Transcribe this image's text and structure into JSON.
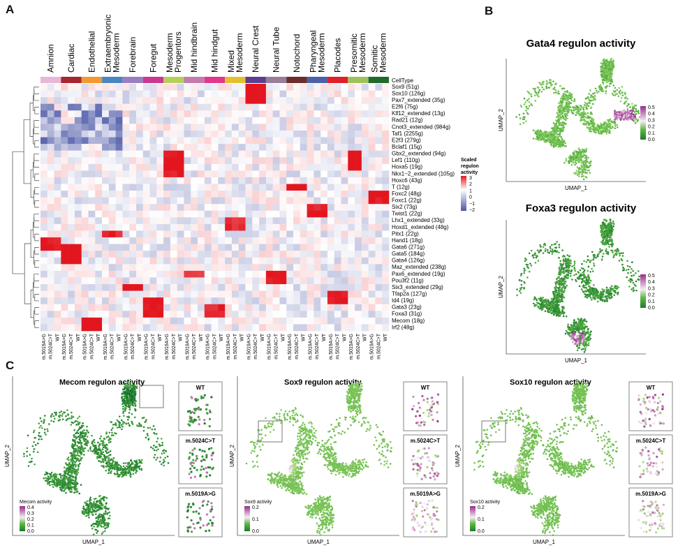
{
  "panels": {
    "A": "A",
    "B": "B",
    "C": "C"
  },
  "colors": {
    "low": "#4a56a6",
    "mid": "#ffffff",
    "high": "#e3161f",
    "green_dark": "#1e7a32",
    "green_mid": "#5fb843",
    "green_light": "#b5dd86",
    "purple": "#9b2a8a"
  },
  "heatmap": {
    "celltype_label": "CellType",
    "celltypes": [
      {
        "name": "Amnion",
        "color": "#e8b6d6"
      },
      {
        "name": "Cardiac",
        "color": "#a6272f"
      },
      {
        "name": "Endothelial",
        "color": "#f29a2e"
      },
      {
        "name": "Extraembryonic\nMesoderm",
        "color": "#4a87c0"
      },
      {
        "name": "Forebrain",
        "color": "#9b7fc1"
      },
      {
        "name": "Foregut",
        "color": "#c9388f"
      },
      {
        "name": "Mesoderm\nProgentors",
        "color": "#b5cf5b"
      },
      {
        "name": "Mid hindbrain",
        "color": "#c27dae"
      },
      {
        "name": "Mid hindgut",
        "color": "#e2378b"
      },
      {
        "name": "Mixed\nMesoderm",
        "color": "#e3c12e"
      },
      {
        "name": "Neural Crest",
        "color": "#5b3f91"
      },
      {
        "name": "Neural Tube",
        "color": "#9a7d9a"
      },
      {
        "name": "Notochord",
        "color": "#6b2e2a"
      },
      {
        "name": "Pharyngeal\nMesoderm",
        "color": "#4c60a8"
      },
      {
        "name": "Placodes",
        "color": "#e02129"
      },
      {
        "name": "Presomitic\nMesoderm",
        "color": "#9ec15a"
      },
      {
        "name": "Somitic\nMesoderm",
        "color": "#1f6b2d"
      }
    ],
    "genotypes": [
      "m.5019A>G",
      "m.5024C>T",
      "WT"
    ],
    "regulons": [
      "Sox9 (51g)",
      "Sox10 (126g)",
      "Pax7_extended (35g)",
      "E2f6 (75g)",
      "Klf12_extended (13g)",
      "Rad21 (12g)",
      "Cnot3_extended (984g)",
      "Taf1 (2255g)",
      "E2f3 (279g)",
      "Bclaf1 (15g)",
      "Gbx2_extended (94g)",
      "Lef1 (110g)",
      "Hoxa5 (19g)",
      "Nkx1−2_extended (105g)",
      "Hoxc6 (43g)",
      "T (12g)",
      "Foxc2 (48g)",
      "Foxc1 (22g)",
      "Six2 (73g)",
      "Twist1 (22g)",
      "Lhx1_extended (33g)",
      "Hoxd1_extended (48g)",
      "Pitx1 (22g)",
      "Hand1 (18g)",
      "Gata6 (271g)",
      "Gata5 (184g)",
      "Gata4 (126g)",
      "Maz_extended (238g)",
      "Pax6_extended (19g)",
      "Pou3f2 (11g)",
      "Six3_extended (29g)",
      "Tfap2a (127g)",
      "Id4 (19g)",
      "Gata3 (23g)",
      "Foxa3 (31g)",
      "Mecom (18g)",
      "Irf2 (48g)"
    ],
    "legend_title": "Scaled\nregulon\nactivity",
    "legend_ticks": [
      "3",
      "2",
      "1",
      "0",
      "−1",
      "−2"
    ]
  },
  "chart_data": [
    {
      "type": "heatmap",
      "rows": [
        "Sox9 (51g)",
        "Sox10 (126g)",
        "Pax7_extended (35g)",
        "E2f6 (75g)",
        "Klf12_extended (13g)",
        "Rad21 (12g)",
        "Cnot3_extended (984g)",
        "Taf1 (2255g)",
        "E2f3 (279g)",
        "Bclaf1 (15g)",
        "Gbx2_extended (94g)",
        "Lef1 (110g)",
        "Hoxa5 (19g)",
        "Nkx1−2_extended (105g)",
        "Hoxc6 (43g)",
        "T (12g)",
        "Foxc2 (48g)",
        "Foxc1 (22g)",
        "Six2 (73g)",
        "Twist1 (22g)",
        "Lhx1_extended (33g)",
        "Hoxd1_extended (48g)",
        "Pitx1 (22g)",
        "Hand1 (18g)",
        "Gata6 (271g)",
        "Gata5 (184g)",
        "Gata4 (126g)",
        "Maz_extended (238g)",
        "Pax6_extended (19g)",
        "Pou3f2 (11g)",
        "Six3_extended (29g)",
        "Tfap2a (127g)",
        "Id4 (19g)",
        "Gata3 (23g)",
        "Foxa3 (31g)",
        "Mecom (18g)",
        "Irf2 (48g)"
      ],
      "color_range": [
        -2,
        3
      ],
      "highlights": [
        {
          "rows": [
            0,
            2
          ],
          "celltype": 10,
          "cols": [
            0,
            2
          ],
          "value": 3
        },
        {
          "rows": [
            10,
            13
          ],
          "celltype": 6,
          "cols": [
            0,
            2
          ],
          "value": 2.8
        },
        {
          "rows": [
            10,
            12
          ],
          "celltype": 15,
          "cols": [
            0,
            1
          ],
          "value": 3
        },
        {
          "rows": [
            15,
            15
          ],
          "celltype": 12,
          "cols": [
            0,
            2
          ],
          "value": 3
        },
        {
          "rows": [
            16,
            17
          ],
          "celltype": 16,
          "cols": [
            0,
            2
          ],
          "value": 2.8
        },
        {
          "rows": [
            18,
            19
          ],
          "celltype": 13,
          "cols": [
            0,
            2
          ],
          "value": 2.7
        },
        {
          "rows": [
            20,
            21
          ],
          "celltype": 9,
          "cols": [
            0,
            2
          ],
          "value": 2.5
        },
        {
          "rows": [
            22,
            22
          ],
          "celltype": 3,
          "cols": [
            0,
            2
          ],
          "value": 2.6
        },
        {
          "rows": [
            23,
            24
          ],
          "celltype": 0,
          "cols": [
            0,
            2
          ],
          "value": 2.8
        },
        {
          "rows": [
            24,
            26
          ],
          "celltype": 1,
          "cols": [
            0,
            2
          ],
          "value": 3
        },
        {
          "rows": [
            28,
            29
          ],
          "celltype": 11,
          "cols": [
            0,
            2
          ],
          "value": 2.8
        },
        {
          "rows": [
            28,
            28
          ],
          "celltype": 7,
          "cols": [
            0,
            2
          ],
          "value": 2.5
        },
        {
          "rows": [
            30,
            30
          ],
          "celltype": 4,
          "cols": [
            0,
            2
          ],
          "value": 2.8
        },
        {
          "rows": [
            31,
            32
          ],
          "celltype": 14,
          "cols": [
            0,
            2
          ],
          "value": 2.8
        },
        {
          "rows": [
            32,
            34
          ],
          "celltype": 5,
          "cols": [
            0,
            2
          ],
          "value": 2.8
        },
        {
          "rows": [
            33,
            34
          ],
          "celltype": 8,
          "cols": [
            0,
            2
          ],
          "value": 2.6
        },
        {
          "rows": [
            35,
            36
          ],
          "celltype": 2,
          "cols": [
            0,
            2
          ],
          "value": 3
        }
      ],
      "negative_block": {
        "rows": [
          3,
          9
        ],
        "celltypes": [
          0,
          1,
          2,
          3
        ],
        "value": -1.8
      }
    },
    {
      "type": "scatter",
      "title": "Gata4 regulon activity",
      "xlabel": "UMAP_1",
      "ylabel": "UMAP_2",
      "colorbar_ticks": [
        "0.5",
        "0.4",
        "0.3",
        "0.2",
        "0.1",
        "0.0"
      ]
    },
    {
      "type": "scatter",
      "title": "Foxa3 regulon activity",
      "xlabel": "UMAP_1",
      "ylabel": "UMAP_2",
      "colorbar_ticks": [
        "0.5",
        "0.4",
        "0.3",
        "0.2",
        "0.1",
        "0.0"
      ]
    },
    {
      "type": "scatter",
      "title": "Mecom regulon activity",
      "xlabel": "UMAP_1",
      "ylabel": "UMAP_2",
      "legend_title": "Mecom activity",
      "colorbar_ticks": [
        "0.4",
        "0.3",
        "0.2",
        "0.1",
        "0.0"
      ],
      "insets": [
        "WT",
        "m.5024C>T",
        "m.5019A>G"
      ]
    },
    {
      "type": "scatter",
      "title": "Sox9 regulon activity",
      "xlabel": "UMAP_1",
      "ylabel": "UMAP_2",
      "legend_title": "Sox9 activity",
      "colorbar_ticks": [
        "0.2",
        "0.1",
        "0.0"
      ],
      "insets": [
        "WT",
        "m.5024C>T",
        "m.5019A>G"
      ]
    },
    {
      "type": "scatter",
      "title": "Sox10 regulon activity",
      "xlabel": "UMAP_1",
      "ylabel": "UMAP_2",
      "legend_title": "Sox10 activity",
      "colorbar_ticks": [
        "0.2",
        "0.1",
        "0.0"
      ],
      "insets": [
        "WT",
        "m.5024C>T",
        "m.5019A>G"
      ]
    }
  ]
}
